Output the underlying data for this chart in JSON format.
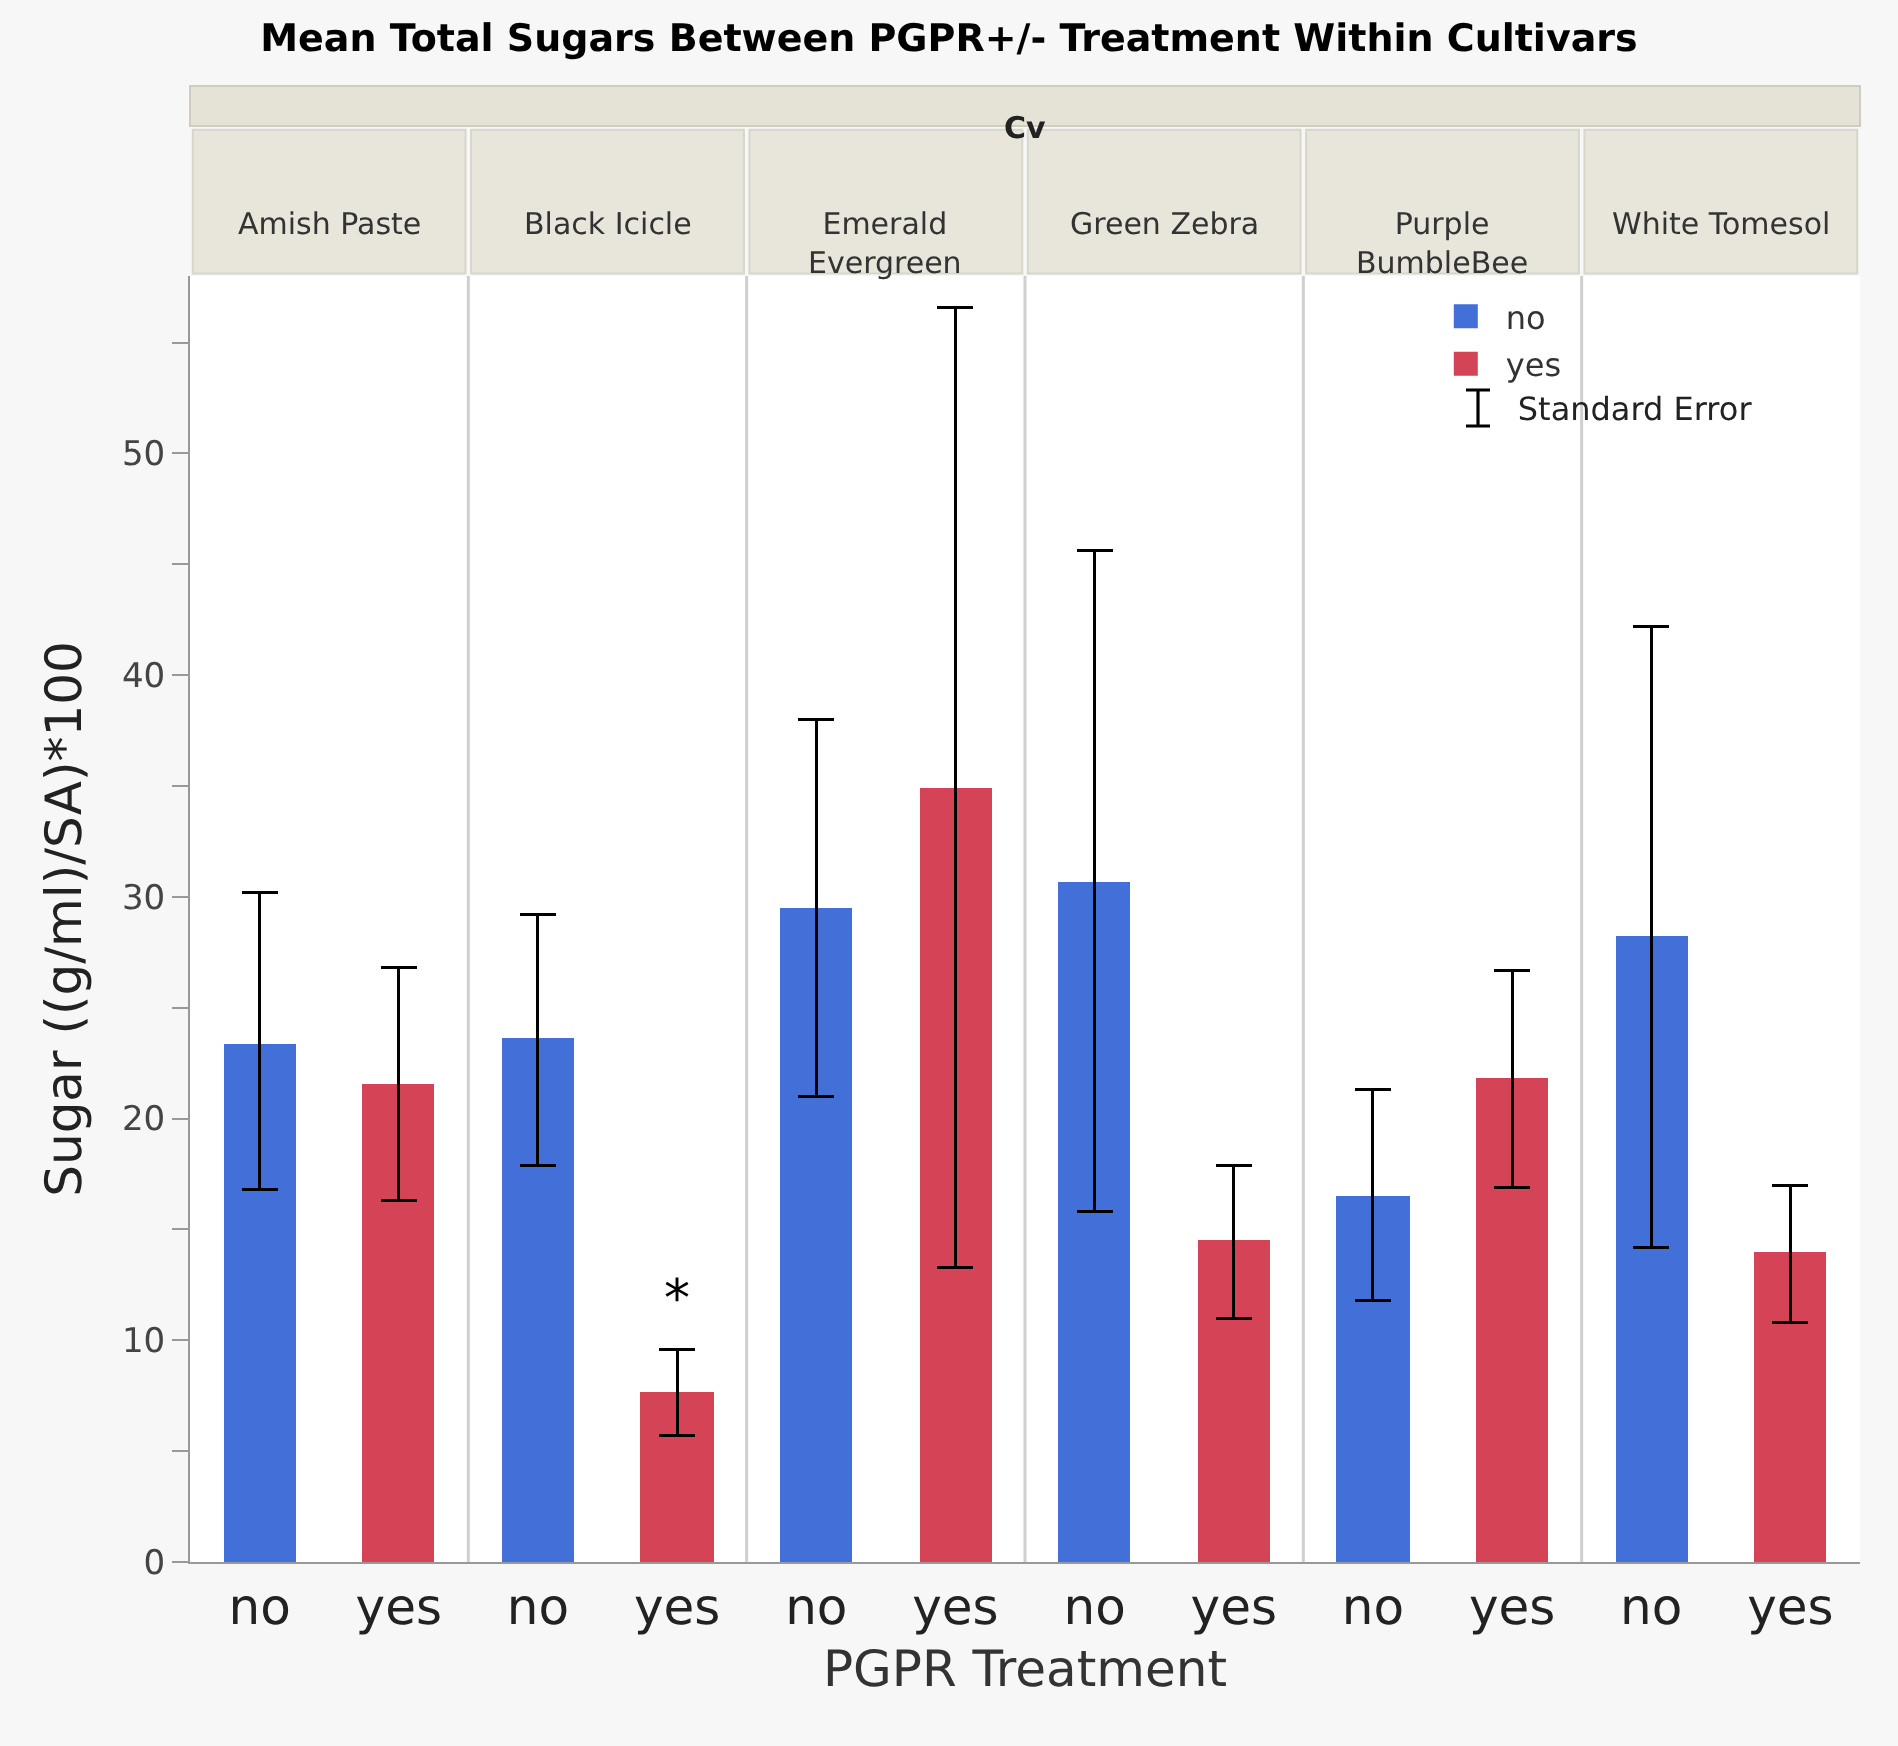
{
  "chart_data": {
    "type": "bar",
    "title": "Mean Total Sugars Between PGPR+/- Treatment Within Cultivars",
    "xlabel": "PGPR Treatment",
    "ylabel": "Sugar ((g/ml)/SA)*100",
    "categories": [
      "no",
      "yes",
      "no",
      "yes",
      "no",
      "yes",
      "no",
      "yes",
      "no",
      "yes",
      "no",
      "yes"
    ],
    "series": [
      {
        "name": "no",
        "color": "#426fd8",
        "values": [
          23.4,
          null,
          23.6,
          null,
          29.5,
          null,
          30.7,
          null,
          16.5,
          null,
          28.2,
          null
        ],
        "errors": [
          [
            16.8,
            30.2
          ],
          null,
          [
            17.9,
            29.2
          ],
          null,
          [
            21.0,
            38.0
          ],
          null,
          [
            15.8,
            45.6
          ],
          null,
          [
            11.8,
            21.3
          ],
          null,
          [
            14.2,
            42.2
          ],
          null
        ]
      },
      {
        "name": "yes",
        "color": "#d44456",
        "values": [
          null,
          21.6,
          null,
          7.7,
          null,
          34.9,
          null,
          14.5,
          null,
          21.8,
          null,
          14.0
        ],
        "errors": [
          null,
          [
            16.3,
            26.8
          ],
          null,
          [
            5.7,
            9.6
          ],
          null,
          [
            13.3,
            56.6
          ],
          null,
          [
            11.0,
            17.9
          ],
          null,
          [
            16.9,
            26.7
          ],
          null,
          [
            10.8,
            17.0
          ]
        ],
        "value_labels": [
          null,
          null,
          null,
          "*",
          null,
          null,
          null,
          null,
          null,
          null,
          null,
          null
        ]
      }
    ],
    "annotations": [
      "Cv",
      "Amish Paste",
      "Black Icicle",
      "Emerald Evergreen",
      "Green Zebra",
      "Purple BumbleBee",
      "White Tomesol",
      "Standard Error"
    ],
    "ylim": [
      0,
      58
    ],
    "yticks": [
      0,
      {
        "value": 5,
        "label": null
      },
      10,
      {
        "value": 15,
        "label": null
      },
      20,
      {
        "value": 25,
        "label": null
      },
      30,
      {
        "value": 35,
        "label": null
      },
      40,
      {
        "value": 45,
        "label": null
      },
      50,
      {
        "value": 55,
        "label": null
      }
    ],
    "grid": false,
    "legend": "top right"
  }
}
